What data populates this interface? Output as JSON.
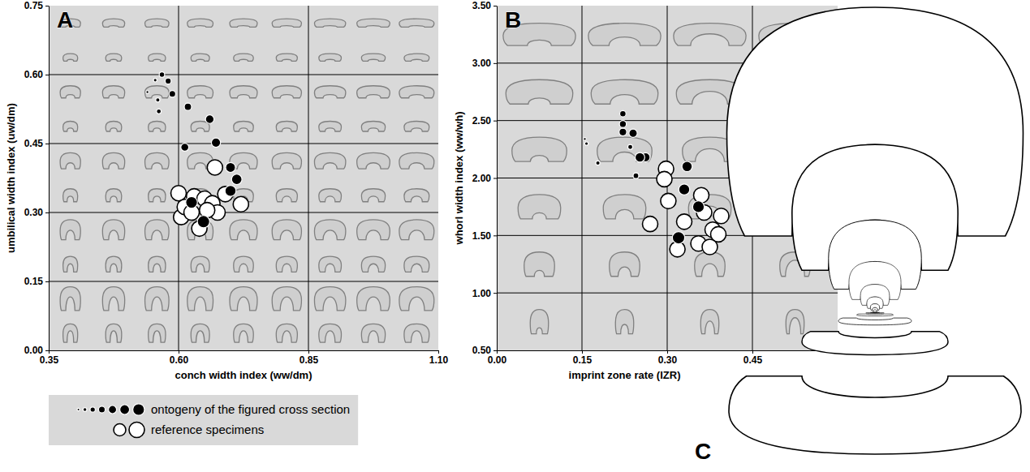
{
  "chart_data": [
    {
      "type": "scatter",
      "title": "A",
      "x_label": "conch width index (ww/dm)",
      "y_label": "umbilical width index (uw/dm)",
      "xlim": [
        0.35,
        1.1
      ],
      "ylim": [
        0,
        0.75
      ],
      "xticks": [
        0.35,
        {
          "value": 0.6,
          "label": "0.60"
        },
        0.85,
        {
          "value": 1.1,
          "label": "1.10"
        }
      ],
      "yticks": [
        {
          "value": 0,
          "label": "0.00"
        },
        0.15,
        {
          "value": 0.3,
          "label": "0.30"
        },
        0.45,
        {
          "value": 0.6,
          "label": "0.60"
        },
        0.75
      ],
      "grid": true,
      "legend": "bottom-left",
      "series": [
        {
          "name": "ontogeny of the figured cross section",
          "color": "#000000",
          "marker": "circle",
          "x": [
            0.54,
            0.555,
            0.56,
            0.562,
            0.568,
            0.58,
            0.588,
            0.618,
            0.612,
            0.66,
            0.672,
            0.7,
            0.712,
            0.7,
            0.625,
            0.648
          ],
          "values": [
            0.562,
            0.588,
            0.545,
            0.52,
            0.6,
            0.586,
            0.558,
            0.53,
            0.442,
            0.503,
            0.452,
            0.398,
            0.372,
            0.347,
            0.322,
            0.28
          ]
        },
        {
          "name": "reference specimens",
          "color": "#ffffff",
          "marker": "circle",
          "x": [
            0.6,
            0.605,
            0.612,
            0.625,
            0.63,
            0.64,
            0.65,
            0.665,
            0.675,
            0.67,
            0.69,
            0.72,
            0.655
          ],
          "values": [
            0.342,
            0.29,
            0.312,
            0.3,
            0.335,
            0.265,
            0.33,
            0.32,
            0.3,
            0.398,
            0.34,
            0.318,
            0.305
          ]
        }
      ]
    },
    {
      "type": "scatter",
      "title": "B",
      "x_label": "imprint zone rate (IZR)",
      "y_label": "whorl width index (ww/wh)",
      "xlim": [
        0,
        0.6
      ],
      "ylim": [
        0.5,
        3.5
      ],
      "xticks": [
        {
          "value": 0,
          "label": "0.00"
        },
        0.15,
        {
          "value": 0.3,
          "label": "0.30"
        },
        0.45
      ],
      "yticks": [
        {
          "value": 0.5,
          "label": "0.50"
        },
        {
          "value": 1,
          "label": "1.00"
        },
        {
          "value": 1.5,
          "label": "1.50"
        },
        {
          "value": 2,
          "label": "2.00"
        },
        {
          "value": 2.5,
          "label": "2.50"
        },
        {
          "value": 3,
          "label": "3.00"
        },
        {
          "value": 3.5,
          "label": "3.50"
        }
      ],
      "grid": true,
      "series": [
        {
          "color": "#000000",
          "marker": "circle",
          "x": [
            0.155,
            0.158,
            0.178,
            0.235,
            0.245,
            0.222,
            0.222,
            0.222,
            0.24,
            0.262,
            0.252,
            0.335,
            0.33,
            0.355,
            0.32
          ],
          "values": [
            2.34,
            2.3,
            2.13,
            2.27,
            2.02,
            2.56,
            2.47,
            2.4,
            2.39,
            2.18,
            2.18,
            2.1,
            1.9,
            1.75,
            1.48
          ]
        },
        {
          "color": "#ffffff",
          "marker": "circle",
          "x": [
            0.298,
            0.295,
            0.302,
            0.27,
            0.33,
            0.318,
            0.355,
            0.36,
            0.365,
            0.395,
            0.38,
            0.39,
            0.375
          ],
          "values": [
            2.08,
            1.99,
            1.8,
            1.6,
            1.62,
            1.38,
            1.43,
            1.85,
            1.7,
            1.67,
            1.55,
            1.51,
            1.4
          ]
        }
      ]
    }
  ],
  "diagram": {
    "label": "C"
  }
}
